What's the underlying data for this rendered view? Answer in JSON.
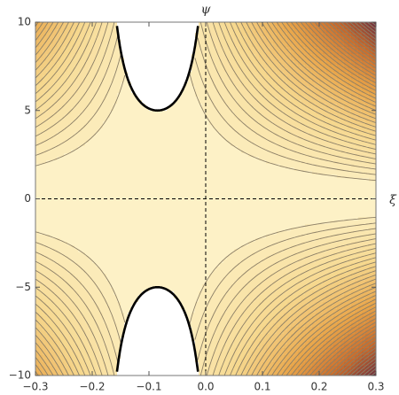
{
  "chart_data": {
    "type": "contour",
    "x_label": "ξ",
    "y_label": "ψ",
    "xlim": [
      -0.3,
      0.3
    ],
    "ylim": [
      -10,
      10
    ],
    "xticks": [
      {
        "value": -0.3,
        "label": "−0.3"
      },
      {
        "value": -0.2,
        "label": "−0.2"
      },
      {
        "value": -0.1,
        "label": "−0.1"
      },
      {
        "value": 0,
        "label": "0.0"
      },
      0.1,
      0.2,
      0.3
    ],
    "yticks": [
      {
        "value": -10,
        "label": "−10"
      },
      {
        "value": -5,
        "label": "−5"
      },
      0,
      5,
      10
    ],
    "colormap": [
      "#fdf1c6",
      "#f6d88f",
      "#e9a64a",
      "#c86b2c",
      "#6a2a40"
    ],
    "line_color": "#8c7f66",
    "boundary_color": "#000000"
  }
}
